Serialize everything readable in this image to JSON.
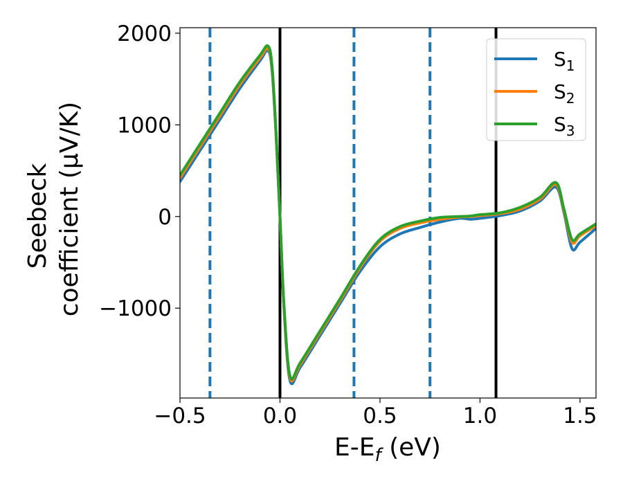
{
  "chart_data": {
    "type": "line",
    "xlabel": "E-E_f (eV)",
    "xlabel_parts": {
      "main": "E-E",
      "sub": "f",
      "rest": " (eV)"
    },
    "ylabel": [
      "Seebeck",
      "coefficient  (μV/K)"
    ],
    "xlim": [
      -0.5,
      1.58
    ],
    "ylim": [
      -1980,
      2060
    ],
    "xticks": [
      -0.5,
      0.0,
      0.5,
      1.0,
      1.5
    ],
    "xtick_labels": [
      "−0.5",
      "0.0",
      "0.5",
      "1.0",
      "1.5"
    ],
    "yticks": [
      -1000,
      0,
      1000,
      2000
    ],
    "ytick_labels": [
      "−1000",
      "0",
      "1000",
      "2000"
    ],
    "grid": false,
    "legend_placement": "top-right",
    "vertical_lines": [
      {
        "x": -0.35,
        "style": "dashed",
        "color": "#1f77b4"
      },
      {
        "x": 0.0,
        "style": "solid",
        "color": "#000000"
      },
      {
        "x": 0.37,
        "style": "dashed",
        "color": "#1f77b4"
      },
      {
        "x": 0.75,
        "style": "dashed",
        "color": "#1f77b4"
      },
      {
        "x": 1.08,
        "style": "solid",
        "color": "#000000"
      }
    ],
    "series": [
      {
        "name": "S1",
        "label_main": "S",
        "label_sub": "1",
        "color": "#1f77b4",
        "x": [
          -0.5,
          -0.4,
          -0.3,
          -0.2,
          -0.1,
          -0.06,
          -0.04,
          -0.02,
          0.0,
          0.02,
          0.05,
          0.1,
          0.2,
          0.3,
          0.4,
          0.5,
          0.6,
          0.7,
          0.8,
          0.9,
          0.95,
          1.0,
          1.1,
          1.2,
          1.3,
          1.38,
          1.42,
          1.46,
          1.5,
          1.58
        ],
        "y": [
          380,
          720,
          1060,
          1400,
          1700,
          1810,
          1600,
          900,
          0,
          -1000,
          -1790,
          -1650,
          -1300,
          -950,
          -600,
          -330,
          -190,
          -120,
          -60,
          -20,
          -30,
          -20,
          10,
          60,
          170,
          320,
          40,
          -350,
          -280,
          -130
        ]
      },
      {
        "name": "S2",
        "label_main": "S",
        "label_sub": "2",
        "color": "#ff7f0e",
        "x": [
          -0.5,
          -0.4,
          -0.3,
          -0.2,
          -0.1,
          -0.06,
          -0.04,
          -0.02,
          0.0,
          0.02,
          0.05,
          0.1,
          0.2,
          0.3,
          0.4,
          0.5,
          0.6,
          0.7,
          0.8,
          0.9,
          0.95,
          1.0,
          1.1,
          1.2,
          1.3,
          1.38,
          1.42,
          1.46,
          1.5,
          1.58
        ],
        "y": [
          420,
          760,
          1100,
          1440,
          1730,
          1830,
          1630,
          920,
          0,
          -980,
          -1760,
          -1620,
          -1270,
          -920,
          -560,
          -270,
          -130,
          -70,
          -30,
          -5,
          0,
          10,
          30,
          80,
          190,
          350,
          60,
          -280,
          -210,
          -100
        ]
      },
      {
        "name": "S3",
        "label_main": "S",
        "label_sub": "3",
        "color": "#2ca02c",
        "x": [
          -0.5,
          -0.4,
          -0.3,
          -0.2,
          -0.1,
          -0.06,
          -0.04,
          -0.02,
          0.0,
          0.02,
          0.05,
          0.1,
          0.2,
          0.3,
          0.4,
          0.5,
          0.6,
          0.7,
          0.8,
          0.9,
          0.95,
          1.0,
          1.1,
          1.2,
          1.3,
          1.38,
          1.42,
          1.46,
          1.5,
          1.58
        ],
        "y": [
          450,
          790,
          1130,
          1470,
          1760,
          1860,
          1650,
          930,
          0,
          -960,
          -1740,
          -1600,
          -1250,
          -900,
          -540,
          -250,
          -110,
          -50,
          -10,
          0,
          5,
          20,
          40,
          100,
          210,
          370,
          80,
          -250,
          -190,
          -80
        ]
      }
    ]
  }
}
